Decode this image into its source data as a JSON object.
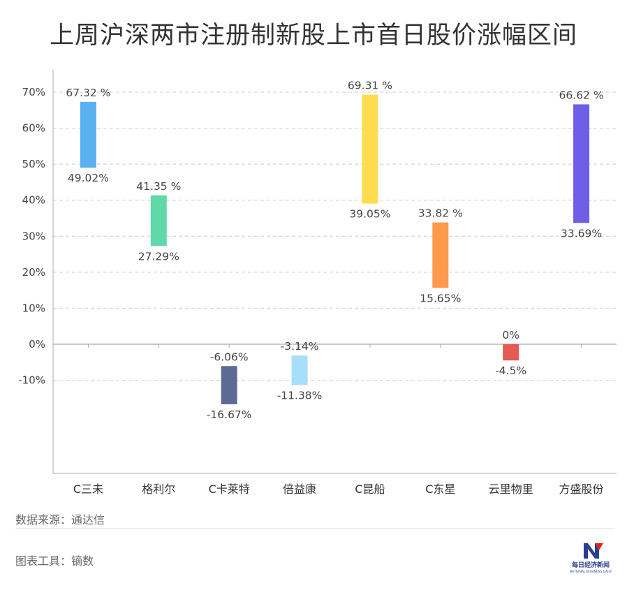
{
  "title": "上周沪深两市注册制新股上市首日股价涨幅区间",
  "footer": {
    "source": "数据来源：通达信",
    "tool": "图表工具：镝数",
    "logo_text": "每日经济新闻",
    "logo_subtext": "NATIONAL BUSINESS DAILY"
  },
  "chart_data": {
    "type": "bar",
    "subtype": "floating-range",
    "title": "上周沪深两市注册制新股上市首日股价涨幅区间",
    "xlabel": "",
    "ylabel": "",
    "ylim": [
      -35,
      80
    ],
    "yticks": [
      -10,
      0,
      10,
      20,
      30,
      40,
      50,
      60,
      70
    ],
    "ytick_labels": [
      "-10%",
      "0%",
      "10%",
      "20%",
      "30%",
      "40%",
      "50%",
      "60%",
      "70%"
    ],
    "grid": true,
    "categories": [
      "C三未",
      "格利尔",
      "C卡莱特",
      "倍益康",
      "C昆船",
      "C东星",
      "云里物里",
      "方盛股份"
    ],
    "high": [
      67.32,
      41.35,
      -6.06,
      -3.14,
      69.31,
      33.82,
      0,
      66.62
    ],
    "low": [
      49.02,
      27.29,
      -16.67,
      -11.38,
      39.05,
      15.65,
      -4.5,
      33.69
    ],
    "high_labels": [
      "67.32 %",
      "41.35 %",
      "-6.06%",
      "-3.14%",
      "69.31 %",
      "33.82 %",
      "0%",
      "66.62 %"
    ],
    "low_labels": [
      "49.02%",
      "27.29%",
      "-16.67%",
      "-11.38%",
      "39.05%",
      "15.65%",
      "-4.5%",
      "33.69%"
    ],
    "colors": [
      "#5ab1ef",
      "#5fd9a8",
      "#5b6b93",
      "#a8dff8",
      "#ffdc4d",
      "#ff9a4d",
      "#e45a55",
      "#6f5ee8"
    ]
  }
}
